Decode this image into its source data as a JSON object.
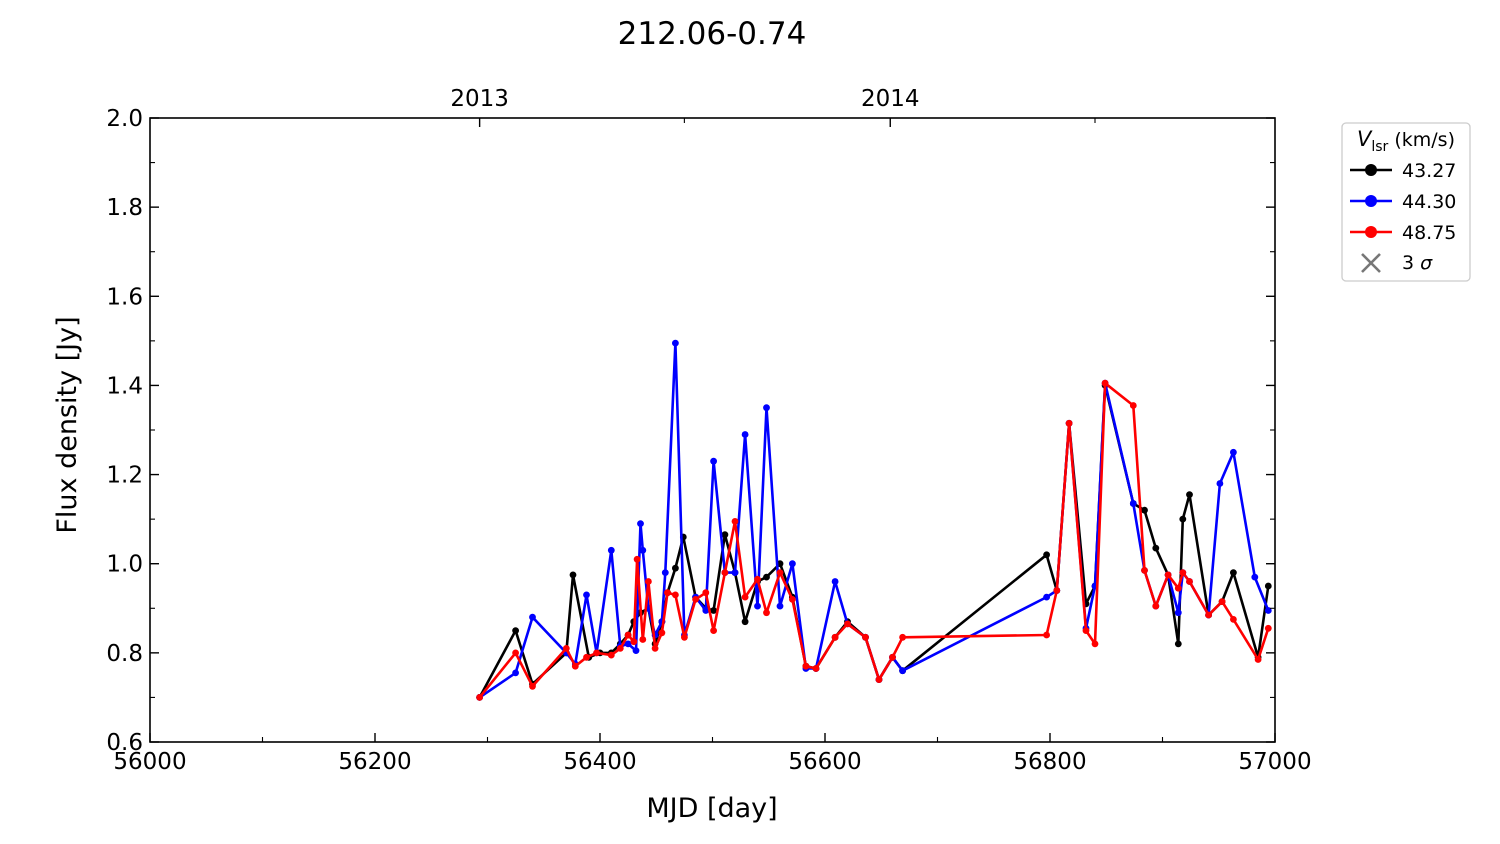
{
  "chart_data": {
    "type": "line",
    "title": "212.06-0.74",
    "xlabel": "MJD [day]",
    "ylabel": "Flux density [Jy]",
    "xlim": [
      56000,
      57000
    ],
    "ylim": [
      0.6,
      2.0
    ],
    "x_ticks": [
      56000,
      56200,
      56400,
      56600,
      56800,
      57000
    ],
    "x_ticks_minor_step": 100,
    "y_ticks": [
      "0.6",
      "0.8",
      "1.0",
      "1.2",
      "1.4",
      "1.6",
      "1.8",
      "2.0"
    ],
    "y_ticks_minor_step": 0.1,
    "top_axis": {
      "labels": [
        "2013",
        "2014"
      ],
      "mjd": [
        56293,
        56658
      ],
      "minor_mjd": [
        56475,
        56840
      ]
    },
    "grid": false,
    "legend": {
      "placement": "outside-right",
      "title_italic": "V",
      "title_sub": "lsr",
      "title_rest": " (km/s)",
      "sigma_label_prefix": "3 ",
      "sigma_label_symbol": "σ"
    },
    "series": [
      {
        "name": "43.27",
        "color": "#000000",
        "points": [
          [
            56293,
            0.7
          ],
          [
            56325,
            0.85
          ],
          [
            56340,
            0.73
          ],
          [
            56370,
            0.8
          ],
          [
            56376,
            0.975
          ],
          [
            56390,
            0.79
          ],
          [
            56400,
            0.8
          ],
          [
            56410,
            0.8
          ],
          [
            56418,
            0.82
          ],
          [
            56425,
            0.84
          ],
          [
            56430,
            0.87
          ],
          [
            56436,
            0.89
          ],
          [
            56443,
            0.9
          ],
          [
            56449,
            0.82
          ],
          [
            56455,
            0.87
          ],
          [
            56460,
            0.935
          ],
          [
            56467,
            0.99
          ],
          [
            56474,
            1.06
          ],
          [
            56485,
            0.925
          ],
          [
            56494,
            0.9
          ],
          [
            56501,
            0.895
          ],
          [
            56511,
            1.065
          ],
          [
            56520,
            0.98
          ],
          [
            56529,
            0.87
          ],
          [
            56540,
            0.96
          ],
          [
            56548,
            0.97
          ],
          [
            56560,
            1.0
          ],
          [
            56571,
            0.925
          ],
          [
            56583,
            0.77
          ],
          [
            56592,
            0.765
          ],
          [
            56609,
            0.835
          ],
          [
            56620,
            0.87
          ],
          [
            56636,
            0.835
          ],
          [
            56648,
            0.74
          ],
          [
            56660,
            0.79
          ],
          [
            56669,
            0.76
          ],
          [
            56797,
            1.02
          ],
          [
            56806,
            0.94
          ],
          [
            56817,
            1.315
          ],
          [
            56832,
            0.91
          ],
          [
            56840,
            0.95
          ],
          [
            56849,
            1.4
          ],
          [
            56874,
            1.135
          ],
          [
            56884,
            1.12
          ],
          [
            56894,
            1.035
          ],
          [
            56905,
            0.975
          ],
          [
            56914,
            0.82
          ],
          [
            56918,
            1.1
          ],
          [
            56924,
            1.155
          ],
          [
            56941,
            0.885
          ],
          [
            56953,
            0.915
          ],
          [
            56963,
            0.98
          ],
          [
            56985,
            0.79
          ],
          [
            56994,
            0.95
          ]
        ]
      },
      {
        "name": "44.30",
        "color": "#0000ff",
        "points": [
          [
            56293,
            0.7
          ],
          [
            56325,
            0.755
          ],
          [
            56340,
            0.88
          ],
          [
            56370,
            0.8
          ],
          [
            56378,
            0.775
          ],
          [
            56388,
            0.93
          ],
          [
            56397,
            0.8
          ],
          [
            56410,
            1.03
          ],
          [
            56418,
            0.815
          ],
          [
            56425,
            0.82
          ],
          [
            56432,
            0.805
          ],
          [
            56436,
            1.09
          ],
          [
            56438,
            1.03
          ],
          [
            56443,
            0.9
          ],
          [
            56449,
            0.84
          ],
          [
            56455,
            0.87
          ],
          [
            56458,
            0.98
          ],
          [
            56467,
            1.495
          ],
          [
            56475,
            0.84
          ],
          [
            56485,
            0.925
          ],
          [
            56494,
            0.895
          ],
          [
            56501,
            1.23
          ],
          [
            56511,
            0.98
          ],
          [
            56520,
            0.98
          ],
          [
            56529,
            1.29
          ],
          [
            56540,
            0.905
          ],
          [
            56548,
            1.35
          ],
          [
            56560,
            0.905
          ],
          [
            56571,
            1.0
          ],
          [
            56583,
            0.765
          ],
          [
            56592,
            0.765
          ],
          [
            56609,
            0.96
          ],
          [
            56620,
            0.865
          ],
          [
            56636,
            0.835
          ],
          [
            56648,
            0.74
          ],
          [
            56660,
            0.79
          ],
          [
            56669,
            0.76
          ],
          [
            56797,
            0.925
          ],
          [
            56806,
            0.94
          ],
          [
            56817,
            1.315
          ],
          [
            56832,
            0.855
          ],
          [
            56840,
            0.95
          ],
          [
            56849,
            1.405
          ],
          [
            56874,
            1.135
          ],
          [
            56884,
            0.985
          ],
          [
            56894,
            0.905
          ],
          [
            56905,
            0.975
          ],
          [
            56914,
            0.89
          ],
          [
            56918,
            0.98
          ],
          [
            56924,
            0.96
          ],
          [
            56941,
            0.885
          ],
          [
            56951,
            1.18
          ],
          [
            56963,
            1.25
          ],
          [
            56982,
            0.97
          ],
          [
            56994,
            0.895
          ]
        ]
      },
      {
        "name": "48.75",
        "color": "#ff0000",
        "points": [
          [
            56293,
            0.7
          ],
          [
            56325,
            0.8
          ],
          [
            56340,
            0.725
          ],
          [
            56370,
            0.81
          ],
          [
            56378,
            0.77
          ],
          [
            56388,
            0.79
          ],
          [
            56397,
            0.8
          ],
          [
            56410,
            0.795
          ],
          [
            56418,
            0.81
          ],
          [
            56425,
            0.84
          ],
          [
            56430,
            0.825
          ],
          [
            56433,
            1.01
          ],
          [
            56438,
            0.83
          ],
          [
            56443,
            0.96
          ],
          [
            56449,
            0.81
          ],
          [
            56455,
            0.845
          ],
          [
            56460,
            0.935
          ],
          [
            56467,
            0.93
          ],
          [
            56475,
            0.835
          ],
          [
            56485,
            0.92
          ],
          [
            56494,
            0.935
          ],
          [
            56501,
            0.85
          ],
          [
            56511,
            0.98
          ],
          [
            56520,
            1.095
          ],
          [
            56529,
            0.925
          ],
          [
            56540,
            0.965
          ],
          [
            56548,
            0.89
          ],
          [
            56560,
            0.98
          ],
          [
            56571,
            0.92
          ],
          [
            56583,
            0.77
          ],
          [
            56592,
            0.765
          ],
          [
            56609,
            0.835
          ],
          [
            56620,
            0.865
          ],
          [
            56636,
            0.835
          ],
          [
            56648,
            0.74
          ],
          [
            56660,
            0.79
          ],
          [
            56669,
            0.835
          ],
          [
            56797,
            0.84
          ],
          [
            56806,
            0.94
          ],
          [
            56817,
            1.315
          ],
          [
            56832,
            0.85
          ],
          [
            56840,
            0.82
          ],
          [
            56849,
            1.405
          ],
          [
            56874,
            1.355
          ],
          [
            56884,
            0.985
          ],
          [
            56894,
            0.905
          ],
          [
            56905,
            0.975
          ],
          [
            56914,
            0.945
          ],
          [
            56918,
            0.98
          ],
          [
            56924,
            0.96
          ],
          [
            56941,
            0.885
          ],
          [
            56953,
            0.915
          ],
          [
            56963,
            0.875
          ],
          [
            56985,
            0.785
          ],
          [
            56994,
            0.855
          ]
        ]
      }
    ]
  }
}
